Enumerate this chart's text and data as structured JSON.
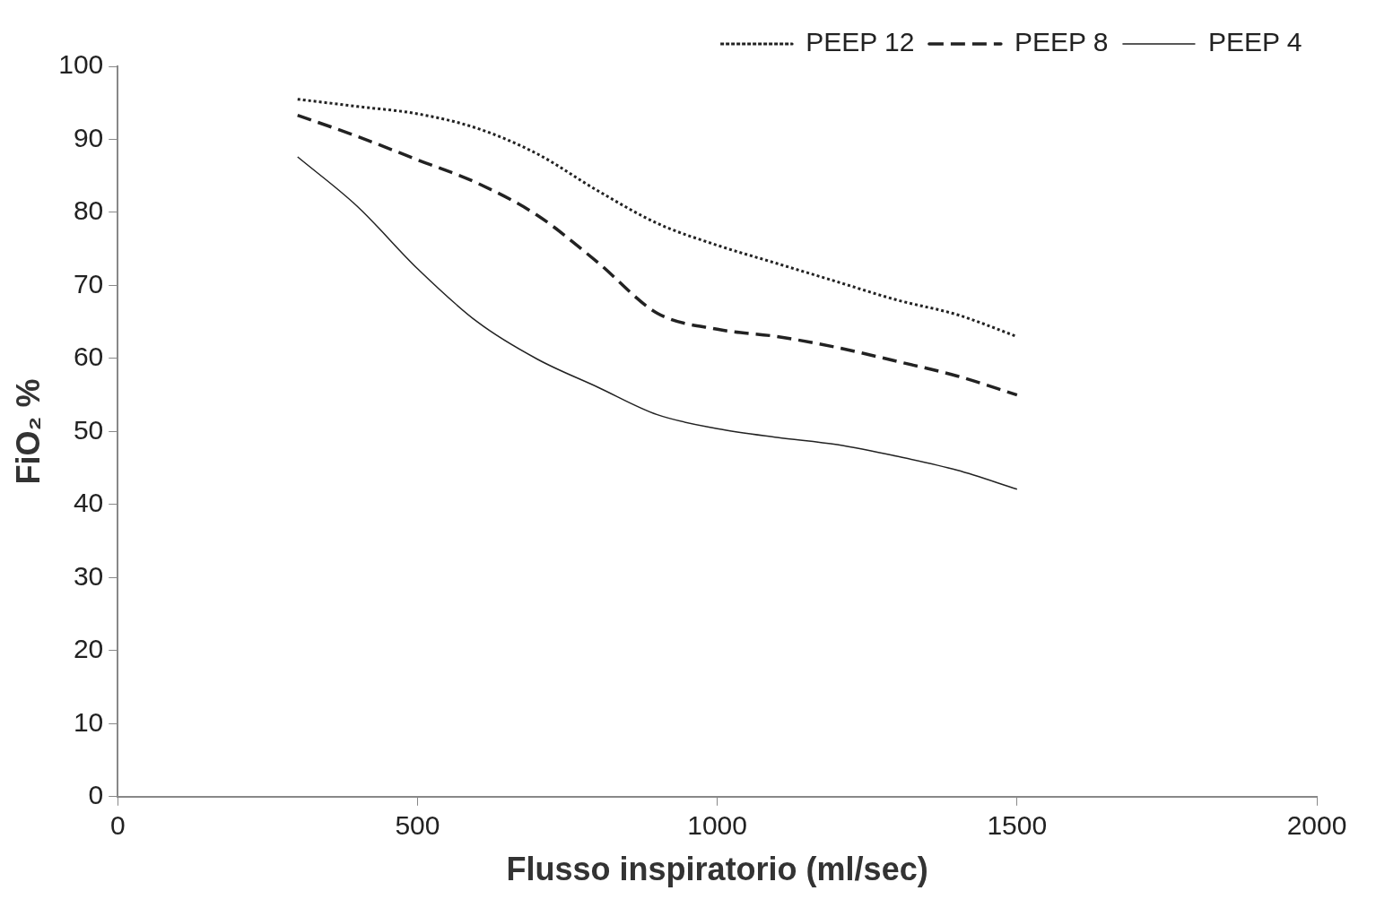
{
  "chart_data": {
    "type": "line",
    "xlabel": "Flusso inspiratorio (ml/sec)",
    "ylabel": "FiO₂ %",
    "x": [
      300,
      400,
      500,
      600,
      700,
      800,
      900,
      1000,
      1100,
      1200,
      1300,
      1400,
      1500
    ],
    "series": [
      {
        "name": "PEEP 12",
        "color": "#222222",
        "line_style": "dotted",
        "values": [
          95.5,
          94.5,
          93.5,
          91.5,
          88,
          83,
          78.5,
          75.5,
          73,
          70.5,
          68,
          66,
          63
        ]
      },
      {
        "name": "PEEP 8",
        "color": "#222222",
        "line_style": "dashed",
        "values": [
          93.3,
          90.4,
          87.2,
          84,
          79.6,
          73.2,
          66.2,
          64,
          63,
          61.5,
          59.6,
          57.6,
          55
        ]
      },
      {
        "name": "PEEP 4",
        "color": "#222222",
        "line_style": "solid",
        "values": [
          87.6,
          80.8,
          72.3,
          65,
          59.9,
          56.1,
          52.3,
          50.4,
          49.2,
          48.2,
          46.6,
          44.7,
          42.1
        ]
      }
    ],
    "xlim": [
      0,
      2000
    ],
    "xticks": [
      0,
      500,
      1000,
      1500,
      2000
    ],
    "ylim": [
      0,
      100
    ],
    "yticks": [
      0,
      10,
      20,
      30,
      40,
      50,
      60,
      70,
      80,
      90,
      100
    ],
    "grid": false,
    "legend": "top right",
    "marker": "none"
  }
}
